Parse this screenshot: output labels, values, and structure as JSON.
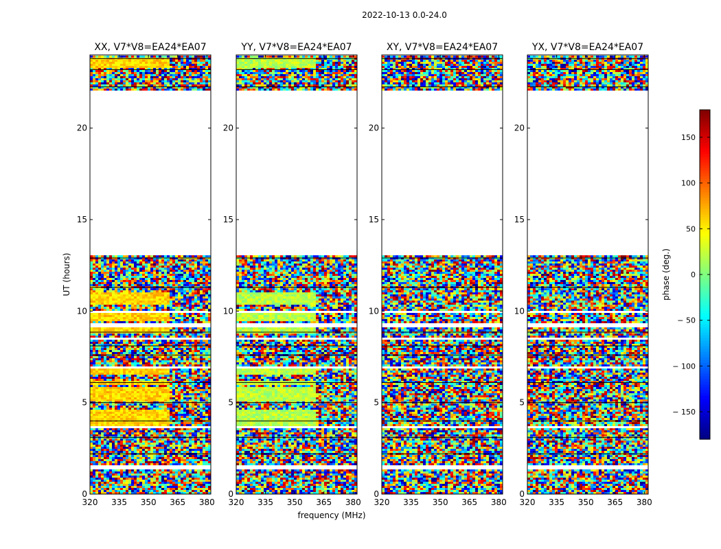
{
  "figure": {
    "suptitle": "2022-10-13 0.0-24.0",
    "xlabel": "frequency (MHz)",
    "ylabel": "UT (hours)"
  },
  "chart_data": {
    "type": "heatmap",
    "description_unit": "phase waterfall per correlation product",
    "x_range": [
      320,
      382
    ],
    "y_range": [
      0,
      24
    ],
    "xticks": [
      320,
      335,
      350,
      365,
      380
    ],
    "yticks": [
      0,
      5,
      10,
      15,
      20
    ],
    "data_gap_hours": [
      [
        13.0,
        22.1
      ]
    ],
    "flagged_row_bands_hours": [
      [
        1.3,
        1.6
      ],
      [
        9.9,
        10.0
      ],
      [
        9.15,
        9.3
      ],
      [
        8.4,
        8.55
      ],
      [
        6.85,
        7.0
      ],
      [
        3.55,
        3.7
      ],
      [
        0.85,
        0.95
      ]
    ],
    "panels": [
      {
        "title": "XX, V7*V8=EA24*EA07",
        "coherent_phase_deg": 60,
        "coherent_until_mhz": 361,
        "coherent_rows_hours": [
          [
            3.6,
            4.6
          ],
          [
            5.1,
            5.8
          ],
          [
            6.0,
            6.2
          ],
          [
            6.5,
            6.9
          ],
          [
            8.8,
            9.3
          ],
          [
            9.4,
            9.9
          ],
          [
            10.3,
            11.0
          ],
          [
            23.3,
            23.9
          ]
        ]
      },
      {
        "title": "YY, V7*V8=EA24*EA07",
        "coherent_phase_deg": 20,
        "coherent_until_mhz": 361,
        "coherent_rows_hours": [
          [
            3.6,
            4.6
          ],
          [
            5.1,
            5.8
          ],
          [
            6.0,
            6.2
          ],
          [
            6.5,
            6.9
          ],
          [
            8.8,
            9.3
          ],
          [
            9.4,
            9.9
          ],
          [
            10.3,
            11.0
          ],
          [
            23.3,
            23.9
          ]
        ]
      },
      {
        "title": "XY, V7*V8=EA24*EA07",
        "coherent_phase_deg": null,
        "coherent_until_mhz": null,
        "coherent_rows_hours": []
      },
      {
        "title": "YX, V7*V8=EA24*EA07",
        "coherent_phase_deg": null,
        "coherent_until_mhz": null,
        "coherent_rows_hours": []
      }
    ],
    "colorbar": {
      "label": "phase (deg.)",
      "range": [
        -180,
        180
      ],
      "ticks": [
        150,
        100,
        50,
        0,
        -50,
        -100,
        -150
      ],
      "tick_labels": [
        "150",
        "100",
        "50",
        "0",
        "− 50",
        "− 100",
        "− 150"
      ],
      "colormap": "jet"
    }
  }
}
